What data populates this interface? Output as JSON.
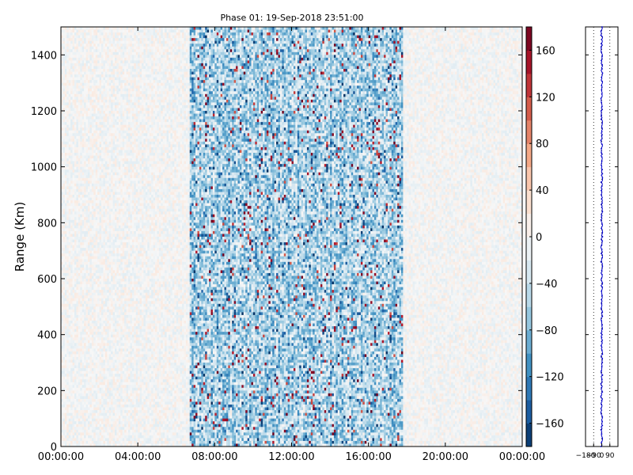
{
  "chart_data": [
    {
      "type": "heatmap",
      "title": "Phase 01: 19-Sep-2018 23:51:00",
      "xlabel": "",
      "ylabel": "Range (Km)",
      "xlim": [
        "00:00:00",
        "24:00:00"
      ],
      "ylim": [
        0,
        1500
      ],
      "x_ticks": [
        "00:00:00",
        "04:00:00",
        "08:00:00",
        "12:00:00",
        "16:00:00",
        "20:00:00",
        "00:00:00"
      ],
      "y_ticks": [
        0,
        200,
        400,
        600,
        800,
        1000,
        1200,
        1400
      ],
      "colormap": "RdBu_r",
      "colorbar": {
        "range": [
          -180,
          180
        ],
        "ticks": [
          -160,
          -120,
          -80,
          -40,
          0,
          40,
          80,
          120,
          160
        ]
      },
      "activity_window": {
        "start": "06:40:00",
        "end": "17:50:00"
      }
    },
    {
      "type": "line",
      "title": "",
      "x_ticks": [
        "-180",
        "-90",
        "0",
        "90"
      ],
      "y_range": [
        0,
        1500
      ],
      "series_color": "#0000cc",
      "description_values": "phase profile near 0 across range"
    }
  ],
  "colors": {
    "negative": "#053061",
    "zero": "#f7f7f7",
    "positive": "#67001f",
    "profile": "#0000cc"
  }
}
